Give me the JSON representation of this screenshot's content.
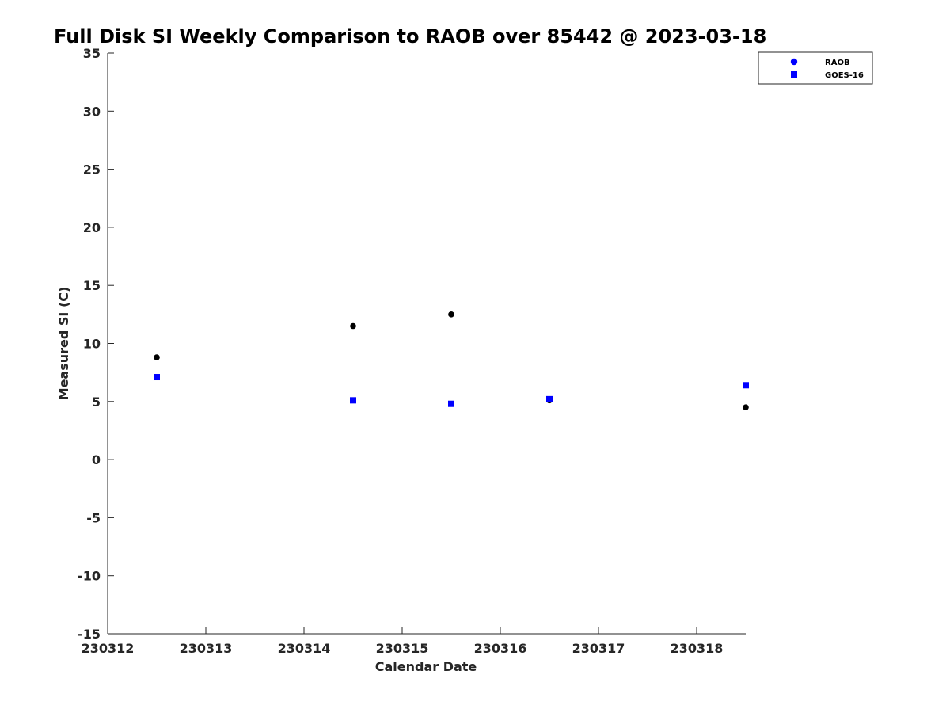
{
  "chart_data": {
    "type": "scatter",
    "title": "Full Disk SI Weekly Comparison to RAOB over 85442 @ 2023-03-18",
    "xlabel": "Calendar Date",
    "ylabel": "Measured SI (C)",
    "xlim": [
      230312,
      230318.5
    ],
    "ylim": [
      -15,
      35
    ],
    "xticks": [
      230312,
      230313,
      230314,
      230315,
      230316,
      230317,
      230318
    ],
    "xtick_labels": [
      "230312",
      "230313",
      "230314",
      "230315",
      "230316",
      "230317",
      "230318"
    ],
    "yticks": [
      -15,
      -10,
      -5,
      0,
      5,
      10,
      15,
      20,
      25,
      30,
      35
    ],
    "ytick_labels": [
      "-15",
      "-10",
      "-5",
      "0",
      "5",
      "10",
      "15",
      "20",
      "25",
      "30",
      "35"
    ],
    "grid": false,
    "legend_position": "top-right",
    "series": [
      {
        "name": "RAOB",
        "marker": "circle",
        "color": "#000000",
        "legend_color": "#0000ff",
        "x": [
          230312.5,
          230314.5,
          230315.5,
          230316.5,
          230318.5
        ],
        "y": [
          8.8,
          11.5,
          12.5,
          5.1,
          4.5
        ]
      },
      {
        "name": "GOES-16",
        "marker": "square",
        "color": "#0000ff",
        "legend_color": "#0000ff",
        "x": [
          230312.5,
          230314.5,
          230315.5,
          230316.5,
          230318.5
        ],
        "y": [
          7.1,
          5.1,
          4.8,
          5.2,
          6.4
        ]
      }
    ]
  }
}
